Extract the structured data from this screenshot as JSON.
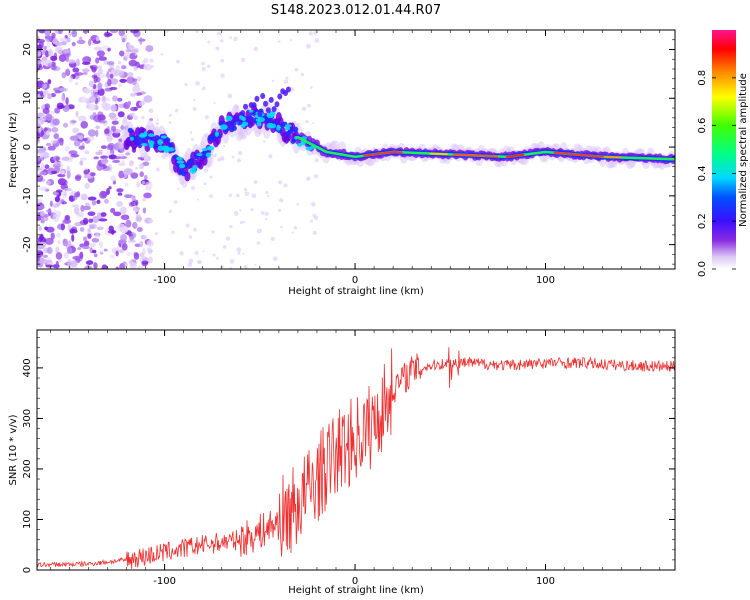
{
  "title": "S148.2023.012.01.44.R07",
  "chart_data": [
    {
      "type": "heatmap",
      "xlabel": "Height of straight line (km)",
      "ylabel": "Frequency (Hz)",
      "xlim": [
        -167,
        168
      ],
      "ylim": [
        -25,
        24
      ],
      "x_ticks": [
        -100,
        0,
        100
      ],
      "y_ticks": [
        -20,
        -10,
        0,
        10,
        20
      ],
      "colorbar": {
        "label": "Normalized spectral amplitude",
        "range": [
          0,
          1
        ],
        "ticks": [
          "0.0",
          "0.2",
          "0.4",
          "0.6",
          "0.8"
        ]
      },
      "ridge": [
        {
          "x": -115,
          "y": 2
        },
        {
          "x": -100,
          "y": 1
        },
        {
          "x": -90,
          "y": -5
        },
        {
          "x": -80,
          "y": -2
        },
        {
          "x": -70,
          "y": 4
        },
        {
          "x": -55,
          "y": 6
        },
        {
          "x": -45,
          "y": 6
        },
        {
          "x": -35,
          "y": 3
        },
        {
          "x": -25,
          "y": 1
        },
        {
          "x": -15,
          "y": -1
        },
        {
          "x": 0,
          "y": -2
        },
        {
          "x": 20,
          "y": -1
        },
        {
          "x": 50,
          "y": -1.5
        },
        {
          "x": 80,
          "y": -2
        },
        {
          "x": 100,
          "y": -1
        },
        {
          "x": 130,
          "y": -2
        },
        {
          "x": 168,
          "y": -2.5
        }
      ]
    },
    {
      "type": "line",
      "xlabel": "Height of straight line (km)",
      "ylabel": "SNR (10 * v/v)",
      "xlim": [
        -167,
        168
      ],
      "ylim": [
        0,
        475
      ],
      "x_ticks": [
        -100,
        0,
        100
      ],
      "y_ticks": [
        0,
        100,
        200,
        300,
        400
      ],
      "series": [
        {
          "color": "#ee3030",
          "x": [
            -167,
            -140,
            -120,
            -100,
            -80,
            -60,
            -50,
            -40,
            -30,
            -20,
            -10,
            0,
            10,
            20,
            30,
            40,
            50,
            60,
            80,
            100,
            120,
            140,
            168
          ],
          "y": [
            10,
            12,
            20,
            35,
            50,
            60,
            75,
            95,
            130,
            180,
            230,
            260,
            290,
            360,
            395,
            405,
            410,
            410,
            405,
            410,
            410,
            405,
            402
          ]
        }
      ]
    }
  ]
}
